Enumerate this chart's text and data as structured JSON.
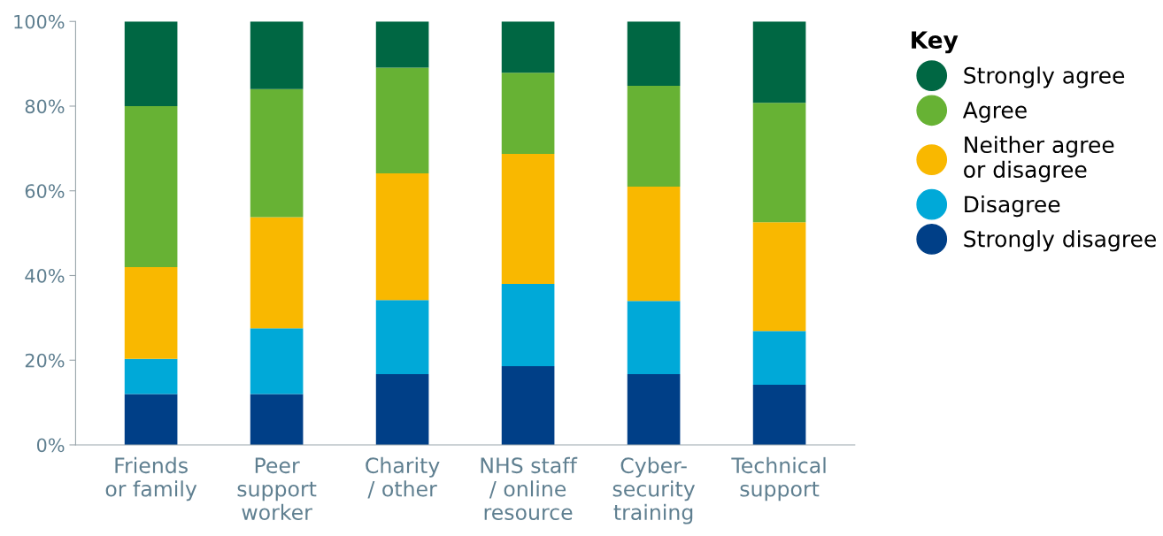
{
  "chart_data": {
    "type": "bar",
    "stacked": true,
    "legend_title": "Key",
    "legend": "right",
    "marker": "circle",
    "grid": false,
    "categories": [
      "Friends\nor family",
      "Peer\nsupport\nworker",
      "Charity\n/ other",
      "NHS staff\n/ online\nresource",
      "Cyber-\nsecurity\ntraining",
      "Technical\nsupport"
    ],
    "ylim": [
      0,
      100
    ],
    "yticks": [
      {
        "value": 0,
        "label": "0%"
      },
      {
        "value": 20,
        "label": "20%"
      },
      {
        "value": 40,
        "label": "40%"
      },
      {
        "value": 60,
        "label": "60%"
      },
      {
        "value": 80,
        "label": "80%"
      },
      {
        "value": 100,
        "label": "100%"
      }
    ],
    "series": [
      {
        "name": "Strongly disagree",
        "color": "#003f87",
        "values": [
          12,
          12,
          16.7,
          18.6,
          16.7,
          14.2
        ]
      },
      {
        "name": "Disagree",
        "color": "#00a9d8",
        "values": [
          8.3,
          15.5,
          17.5,
          19.4,
          17.3,
          12.7
        ]
      },
      {
        "name": "Neither agree\nor disagree",
        "color": "#f9b800",
        "values": [
          21.7,
          26.3,
          29.9,
          30.7,
          27,
          25.7
        ]
      },
      {
        "name": "Agree",
        "color": "#67b234",
        "values": [
          38,
          30.2,
          25,
          19.2,
          23.8,
          28.2
        ]
      },
      {
        "name": "Strongly agree",
        "color": "#006743",
        "values": [
          20,
          16,
          10.9,
          12.1,
          15.2,
          19.2
        ]
      }
    ]
  }
}
